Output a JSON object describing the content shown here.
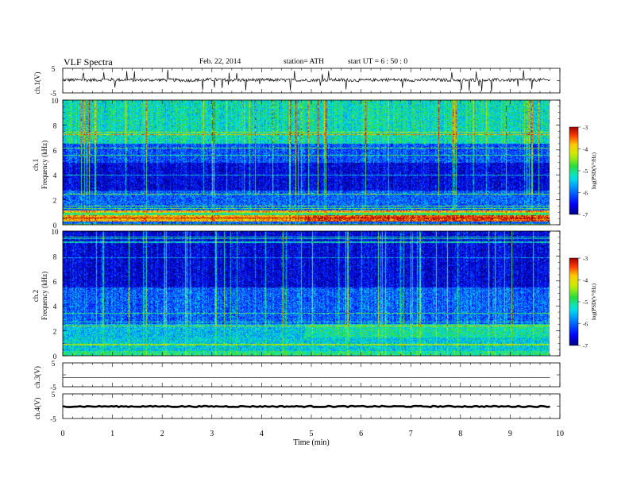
{
  "header": {
    "title": "VLF  Spectra",
    "date": "Feb. 22, 2014",
    "station": "station= ATH",
    "start": "start  UT  =   6  : 50 : 0"
  },
  "chart_data": [
    {
      "type": "line",
      "panel": "ch1-waveform",
      "ylabel": "ch.1(V)",
      "yticks": [
        "5",
        "-5"
      ],
      "ylim": [
        -5,
        5
      ],
      "x": [
        0,
        0.5,
        1,
        1.5,
        2,
        2.5,
        3,
        3.5,
        4,
        4.5,
        5,
        5.5,
        6,
        6.5,
        7,
        7.5,
        8,
        8.5,
        9,
        9.5,
        9.8
      ],
      "values": [
        0.3,
        0.2,
        0.4,
        0.2,
        0.3,
        0.1,
        0.4,
        0.2,
        0.3,
        0.2,
        0.2,
        0.3,
        0.1,
        0.4,
        0.2,
        0.3,
        0.2,
        0.3,
        0.2,
        0.3,
        0.2
      ],
      "note_spikes": "spikes to about +4 / -4 V"
    },
    {
      "type": "heatmap",
      "panel": "ch1-spectrogram",
      "ylabel_line1": "ch.1",
      "ylabel_line2": "Frequency (kHz)",
      "yticks": [
        "0",
        "2",
        "4",
        "6",
        "8",
        "10"
      ],
      "ylim": [
        0,
        10
      ],
      "x_range_min": [
        0,
        9.8
      ],
      "colorbar": {
        "label": "log(PSD(V²/Hz)",
        "ticks": [
          "-3",
          "-4",
          "-5",
          "-6",
          "-7"
        ],
        "range": [
          -7,
          -3
        ]
      },
      "bands_logpsd": [
        {
          "f": [
            0,
            0.3
          ],
          "v": -6.0
        },
        {
          "f": [
            0.3,
            0.8
          ],
          "v": -3.8
        },
        {
          "f": [
            0.8,
            1.2
          ],
          "v": -5.0
        },
        {
          "f": [
            1.2,
            2.8
          ],
          "v": -6.0
        },
        {
          "f": [
            2.8,
            5.0
          ],
          "v": -6.6
        },
        {
          "f": [
            5.0,
            6.5
          ],
          "v": -6.1
        },
        {
          "f": [
            6.5,
            10
          ],
          "v": -5.2
        }
      ]
    },
    {
      "type": "heatmap",
      "panel": "ch2-spectrogram",
      "ylabel_line1": "ch.2",
      "ylabel_line2": "Frequency (kHz)",
      "yticks": [
        "0",
        "2",
        "4",
        "6",
        "8",
        "10"
      ],
      "ylim": [
        0,
        10
      ],
      "x_range_min": [
        0,
        9.8
      ],
      "colorbar": {
        "label": "log(PSD(V²/Hz)",
        "ticks": [
          "-3",
          "-4",
          "-5",
          "-6",
          "-7"
        ],
        "range": [
          -7,
          -3
        ]
      },
      "bands_logpsd": [
        {
          "f": [
            0,
            0.4
          ],
          "v": -5.0
        },
        {
          "f": [
            0.4,
            1.5
          ],
          "v": -5.4
        },
        {
          "f": [
            1.5,
            2.6
          ],
          "v": -5.5
        },
        {
          "f": [
            2.6,
            5.5
          ],
          "v": -6.0
        },
        {
          "f": [
            5.5,
            10
          ],
          "v": -6.6
        }
      ]
    },
    {
      "type": "line",
      "panel": "ch3-waveform",
      "ylabel": "ch.3(V)",
      "yticks": [
        "5",
        "-5"
      ],
      "ylim": [
        -5,
        5
      ],
      "x": [
        0,
        9.8
      ],
      "values": [
        -1.1,
        -1.1
      ]
    },
    {
      "type": "line",
      "panel": "ch4-waveform",
      "ylabel": "ch.4(V)",
      "yticks": [
        "5",
        "-5"
      ],
      "ylim": [
        -5,
        5
      ],
      "x": [
        0,
        9.8
      ],
      "values": [
        -0.1,
        -0.1
      ]
    }
  ],
  "xaxis": {
    "label": "Time  (min)",
    "ticks": [
      "0",
      "1",
      "2",
      "3",
      "4",
      "5",
      "6",
      "7",
      "8",
      "9",
      "10"
    ],
    "range": [
      0,
      10
    ]
  },
  "colors": {
    "frame": "#000000",
    "background": "#ffffff",
    "gap_blank": "#ffffff"
  }
}
